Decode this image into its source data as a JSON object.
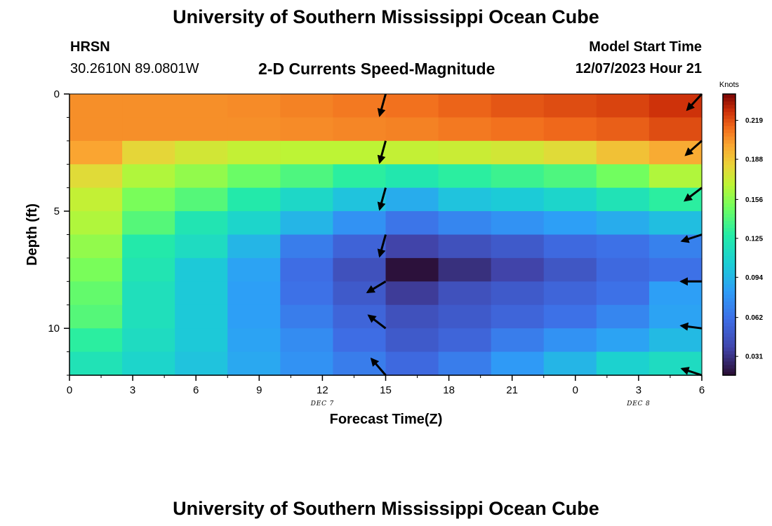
{
  "header": {
    "title": "University of Southern Mississippi Ocean Cube",
    "station": "HRSN",
    "coords": "30.2610N  89.0801W",
    "chart_title": "2-D Currents Speed-Magnitude",
    "start_label": "Model Start Time",
    "start_value": "12/07/2023 Hour 21"
  },
  "footer": {
    "title": "University of Southern Mississippi Ocean Cube"
  },
  "chart_data": {
    "type": "heatmap",
    "title": "2-D Currents Speed-Magnitude",
    "xlabel": "Forecast Time(Z)",
    "ylabel": "Depth (ft)",
    "x_ticks": [
      {
        "label": "0",
        "hour": 0
      },
      {
        "label": "3",
        "hour": 3
      },
      {
        "label": "6",
        "hour": 6
      },
      {
        "label": "9",
        "hour": 9
      },
      {
        "label": "12",
        "hour": 12
      },
      {
        "label": "15",
        "hour": 15
      },
      {
        "label": "18",
        "hour": 18
      },
      {
        "label": "21",
        "hour": 21
      },
      {
        "label": "0",
        "hour": 24
      },
      {
        "label": "3",
        "hour": 27
      },
      {
        "label": "6",
        "hour": 30
      }
    ],
    "date_labels": [
      {
        "label": "DEC 7",
        "hour": 12
      },
      {
        "label": "DEC 8",
        "hour": 27
      }
    ],
    "x_range": [
      0,
      30
    ],
    "y_range": [
      0,
      12
    ],
    "y_ticks": [
      {
        "label": "0",
        "value": 0
      },
      {
        "label": "5",
        "value": 5
      },
      {
        "label": "10",
        "value": 10
      }
    ],
    "time_columns": [
      1.25,
      3.75,
      6.25,
      8.75,
      11.25,
      13.75,
      16.25,
      18.75,
      21.25,
      23.75,
      26.25,
      28.75
    ],
    "depth_rows": [
      1,
      2,
      3,
      4,
      5,
      6,
      7,
      8,
      9,
      10,
      11,
      12
    ],
    "values": [
      [
        0.205,
        0.205,
        0.205,
        0.206,
        0.208,
        0.21,
        0.212,
        0.215,
        0.218,
        0.22,
        0.222,
        0.226
      ],
      [
        0.205,
        0.205,
        0.205,
        0.205,
        0.206,
        0.207,
        0.208,
        0.21,
        0.212,
        0.214,
        0.216,
        0.22
      ],
      [
        0.2,
        0.182,
        0.175,
        0.17,
        0.168,
        0.168,
        0.17,
        0.172,
        0.175,
        0.18,
        0.19,
        0.198
      ],
      [
        0.18,
        0.165,
        0.158,
        0.148,
        0.14,
        0.13,
        0.124,
        0.13,
        0.135,
        0.14,
        0.15,
        0.165
      ],
      [
        0.17,
        0.152,
        0.142,
        0.126,
        0.112,
        0.1,
        0.09,
        0.1,
        0.104,
        0.11,
        0.12,
        0.13
      ],
      [
        0.165,
        0.142,
        0.122,
        0.11,
        0.094,
        0.078,
        0.064,
        0.072,
        0.078,
        0.084,
        0.09,
        0.098
      ],
      [
        0.158,
        0.126,
        0.115,
        0.094,
        0.068,
        0.055,
        0.038,
        0.045,
        0.05,
        0.058,
        0.062,
        0.07
      ],
      [
        0.152,
        0.122,
        0.103,
        0.086,
        0.06,
        0.045,
        0.018,
        0.03,
        0.038,
        0.048,
        0.058,
        0.062
      ],
      [
        0.146,
        0.118,
        0.103,
        0.084,
        0.062,
        0.05,
        0.035,
        0.045,
        0.05,
        0.056,
        0.062,
        0.084
      ],
      [
        0.142,
        0.118,
        0.103,
        0.084,
        0.068,
        0.056,
        0.045,
        0.05,
        0.056,
        0.062,
        0.072,
        0.086
      ],
      [
        0.13,
        0.115,
        0.103,
        0.086,
        0.075,
        0.06,
        0.05,
        0.056,
        0.068,
        0.078,
        0.086,
        0.096
      ],
      [
        0.12,
        0.11,
        0.1,
        0.088,
        0.078,
        0.068,
        0.058,
        0.068,
        0.082,
        0.094,
        0.108,
        0.115
      ]
    ],
    "arrows": [
      {
        "hour": 15,
        "depth": 0,
        "dx": -0.3,
        "dy": 1
      },
      {
        "hour": 15,
        "depth": 2,
        "dx": -0.3,
        "dy": 1
      },
      {
        "hour": 15,
        "depth": 4,
        "dx": -0.3,
        "dy": 1
      },
      {
        "hour": 15,
        "depth": 6,
        "dx": -0.3,
        "dy": 1
      },
      {
        "hour": 15,
        "depth": 8,
        "dx": -1,
        "dy": 0.55
      },
      {
        "hour": 15,
        "depth": 10,
        "dx": -1,
        "dy": -0.7
      },
      {
        "hour": 15,
        "depth": 12,
        "dx": -0.75,
        "dy": -0.8
      },
      {
        "hour": 30,
        "depth": 0,
        "dx": -0.8,
        "dy": 0.8
      },
      {
        "hour": 30,
        "depth": 2,
        "dx": -0.8,
        "dy": 0.65
      },
      {
        "hour": 30,
        "depth": 4,
        "dx": -0.85,
        "dy": 0.6
      },
      {
        "hour": 30,
        "depth": 6,
        "dx": -1,
        "dy": 0.3
      },
      {
        "hour": 30,
        "depth": 8,
        "dx": -1,
        "dy": 0
      },
      {
        "hour": 30,
        "depth": 10,
        "dx": -1,
        "dy": -0.12
      },
      {
        "hour": 30,
        "depth": 12,
        "dx": -1,
        "dy": -0.3
      }
    ],
    "colorbar": {
      "label": "Knots",
      "min": 0.016,
      "max": 0.24,
      "ticks": [
        0.219,
        0.188,
        0.156,
        0.125,
        0.094,
        0.062,
        0.031
      ],
      "colormap": "turbo"
    }
  }
}
